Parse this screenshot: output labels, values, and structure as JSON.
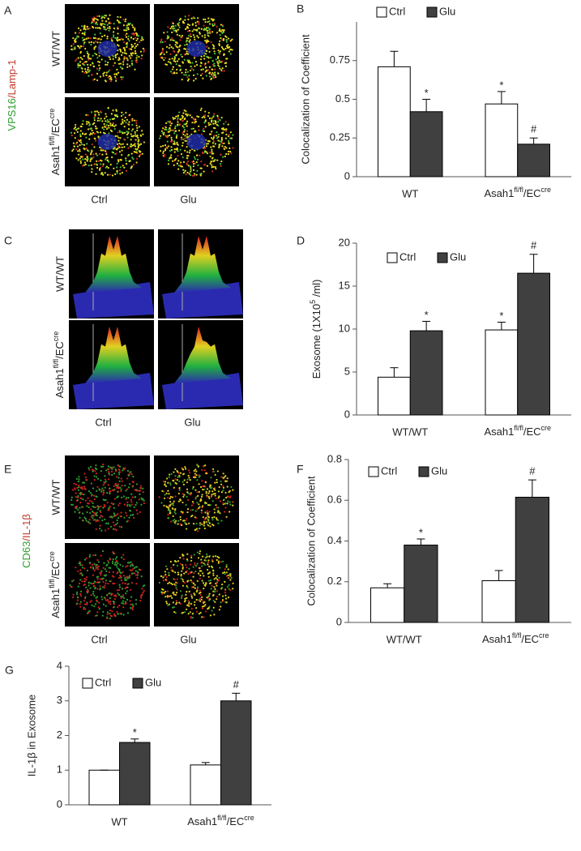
{
  "image_panels": [
    {
      "panel": "A",
      "stain": [
        {
          "text": "VPS16",
          "color": "#2e9e2e"
        },
        {
          "text": "/",
          "color": "#c0392b"
        },
        {
          "text": "Lamp-1",
          "color": "#c0392b"
        }
      ],
      "rows": [
        "WT/WT",
        [
          {
            "text": "Asah1"
          },
          {
            "text": "fl/fl",
            "sup": true
          },
          {
            "text": "/EC"
          },
          {
            "text": "cre",
            "sup": true
          }
        ]
      ],
      "columns": [
        "Ctrl",
        "Glu"
      ]
    },
    {
      "panel": "C",
      "rows": [
        "WT/WT",
        [
          {
            "text": "Asah1"
          },
          {
            "text": "fl/fl",
            "sup": true
          },
          {
            "text": "/EC"
          },
          {
            "text": "cre",
            "sup": true
          }
        ]
      ],
      "columns": [
        "Ctrl",
        "Glu"
      ]
    },
    {
      "panel": "E",
      "stain": [
        {
          "text": "CD63",
          "color": "#2e9e2e"
        },
        {
          "text": "/",
          "color": "#c0392b"
        },
        {
          "text": "IL-1β",
          "color": "#c0392b"
        }
      ],
      "rows": [
        "WT/WT",
        [
          {
            "text": "Asah1"
          },
          {
            "text": "fl/fl",
            "sup": true
          },
          {
            "text": "/EC"
          },
          {
            "text": "cre",
            "sup": true
          }
        ]
      ],
      "columns": [
        "Ctrl",
        "Glu"
      ]
    }
  ],
  "chart_data": [
    {
      "panel": "B",
      "type": "bar",
      "ylabel": "Colocalization of Coefficient",
      "categories": [
        "WT",
        [
          {
            "text": "Asah1"
          },
          {
            "text": "fl/fl",
            "sup": true
          },
          {
            "text": "/EC"
          },
          {
            "text": "cre",
            "sup": true
          }
        ]
      ],
      "series": [
        {
          "name": "Ctrl",
          "color": "#ffffff",
          "values": [
            0.71,
            0.47
          ],
          "errors": [
            0.1,
            0.08
          ],
          "labels": [
            null,
            "*"
          ]
        },
        {
          "name": "Glu",
          "color": "#404040",
          "values": [
            0.42,
            0.21
          ],
          "errors": [
            0.08,
            0.04
          ],
          "labels": [
            "*",
            "#"
          ]
        }
      ],
      "edgecolor": "#000000",
      "ylim": [
        0,
        1
      ],
      "yticks": [
        0,
        0.25,
        0.5,
        0.75
      ],
      "legend": "top-left"
    },
    {
      "panel": "D",
      "type": "bar",
      "ylabel": [
        {
          "text": "Exosome  (1X10"
        },
        {
          "text": "5",
          "sup": true
        },
        {
          "text": " /ml)"
        }
      ],
      "categories": [
        "WT/WT",
        [
          {
            "text": "Asah1"
          },
          {
            "text": "fl/fl",
            "sup": true
          },
          {
            "text": "/EC"
          },
          {
            "text": "cre",
            "sup": true
          }
        ]
      ],
      "series": [
        {
          "name": "Ctrl",
          "color": "#ffffff",
          "values": [
            4.4,
            9.9
          ],
          "errors": [
            1.1,
            0.9
          ],
          "labels": [
            null,
            "*"
          ]
        },
        {
          "name": "Glu",
          "color": "#404040",
          "values": [
            9.8,
            16.5
          ],
          "errors": [
            1.1,
            2.2
          ],
          "labels": [
            "*",
            "#"
          ]
        }
      ],
      "edgecolor": "#000000",
      "ylim": [
        0,
        20
      ],
      "yticks": [
        0,
        5,
        10,
        15,
        20
      ],
      "legend": "top-left"
    },
    {
      "panel": "F",
      "type": "bar",
      "ylabel": "Colocalization of Coefficient",
      "categories": [
        "WT/WT",
        [
          {
            "text": "Asah1"
          },
          {
            "text": "fl/fl",
            "sup": true
          },
          {
            "text": "/EC"
          },
          {
            "text": "cre",
            "sup": true
          }
        ]
      ],
      "series": [
        {
          "name": "Ctrl",
          "color": "#ffffff",
          "values": [
            0.17,
            0.205
          ],
          "errors": [
            0.02,
            0.05
          ],
          "labels": [
            null,
            null
          ]
        },
        {
          "name": "Glu",
          "color": "#404040",
          "values": [
            0.38,
            0.615
          ],
          "errors": [
            0.03,
            0.085
          ],
          "labels": [
            "*",
            "#"
          ]
        }
      ],
      "edgecolor": "#000000",
      "ylim": [
        0,
        0.8
      ],
      "yticks": [
        0,
        0.2,
        0.4,
        0.6,
        0.8
      ],
      "legend": "top-left"
    },
    {
      "panel": "G",
      "type": "bar",
      "ylabel": "IL-1β in Exosome",
      "categories": [
        "WT",
        [
          {
            "text": "Asah1"
          },
          {
            "text": "fl/fl",
            "sup": true
          },
          {
            "text": "/EC"
          },
          {
            "text": "cre",
            "sup": true
          }
        ]
      ],
      "series": [
        {
          "name": "Ctrl",
          "color": "#ffffff",
          "values": [
            1.0,
            1.15
          ],
          "errors": [
            0,
            0.07
          ],
          "labels": [
            null,
            null
          ]
        },
        {
          "name": "Glu",
          "color": "#404040",
          "values": [
            1.8,
            3.0
          ],
          "errors": [
            0.1,
            0.22
          ],
          "labels": [
            "*",
            "#"
          ]
        }
      ],
      "edgecolor": "#000000",
      "ylim": [
        0,
        4
      ],
      "yticks": [
        0,
        1,
        2,
        3,
        4
      ],
      "legend": "top-left"
    }
  ]
}
